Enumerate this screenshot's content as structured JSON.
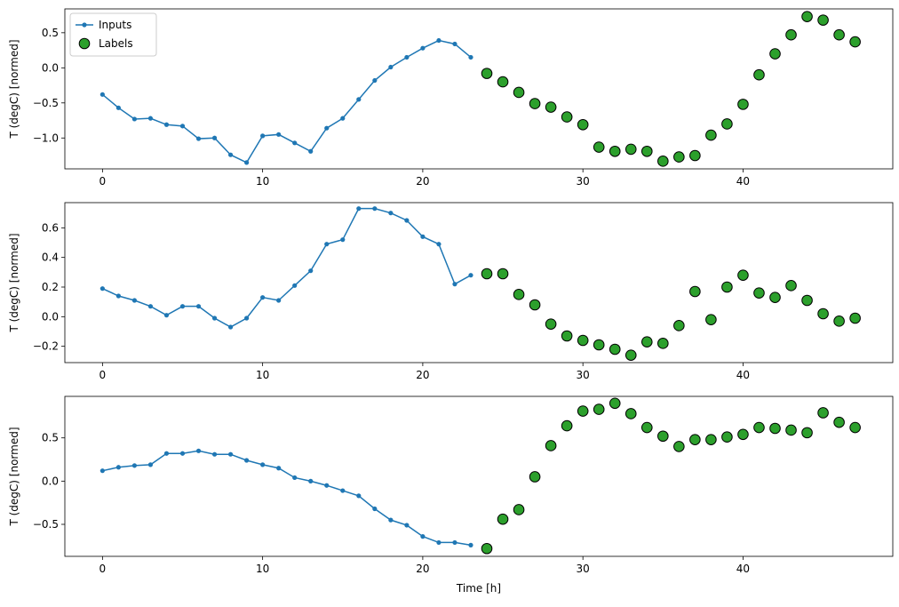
{
  "chart_data": [
    {
      "type": "line",
      "ylabel": "T (degC) [normed]",
      "xlabel": "",
      "xlim": [
        -2.35,
        49.35
      ],
      "ylim": [
        -1.44,
        0.84
      ],
      "xticks": [
        0,
        10,
        20,
        30,
        40
      ],
      "yticks": [
        -1.0,
        -0.5,
        0.0,
        0.5
      ],
      "ytick_labels": [
        "−1.0",
        "−0.5",
        "0.0",
        "0.5"
      ],
      "legend": {
        "placement": "upper-left",
        "entries": [
          "Inputs",
          "Labels"
        ]
      },
      "series": [
        {
          "name": "Inputs",
          "kind": "line-markers",
          "color": "#1f77b4",
          "x": [
            0,
            1,
            2,
            3,
            4,
            5,
            6,
            7,
            8,
            9,
            10,
            11,
            12,
            13,
            14,
            15,
            16,
            17,
            18,
            19,
            20,
            21,
            22,
            23
          ],
          "y": [
            -0.38,
            -0.57,
            -0.73,
            -0.72,
            -0.81,
            -0.83,
            -1.01,
            -1.0,
            -1.24,
            -1.35,
            -0.97,
            -0.95,
            -1.07,
            -1.19,
            -0.86,
            -0.72,
            -0.45,
            -0.18,
            0.01,
            0.15,
            0.28,
            0.39,
            0.34,
            0.15
          ]
        },
        {
          "name": "Labels",
          "kind": "scatter",
          "color": "#2ca02c",
          "edge": "#000000",
          "x": [
            24,
            25,
            26,
            27,
            28,
            29,
            30,
            31,
            32,
            33,
            34,
            35,
            36,
            37,
            38,
            39,
            40,
            41,
            42,
            43,
            44,
            45,
            46,
            47
          ],
          "y": [
            -0.08,
            -0.2,
            -0.35,
            -0.51,
            -0.56,
            -0.7,
            -0.81,
            -1.13,
            -1.19,
            -1.16,
            -1.19,
            -1.33,
            -1.27,
            -1.25,
            -0.96,
            -0.8,
            -0.52,
            -0.1,
            0.2,
            0.47,
            0.73,
            0.68,
            0.47,
            0.37
          ]
        }
      ]
    },
    {
      "type": "line",
      "ylabel": "T (degC) [normed]",
      "xlabel": "",
      "xlim": [
        -2.35,
        49.35
      ],
      "ylim": [
        -0.31,
        0.77
      ],
      "xticks": [
        0,
        10,
        20,
        30,
        40
      ],
      "yticks": [
        -0.2,
        0.0,
        0.2,
        0.4,
        0.6
      ],
      "ytick_labels": [
        "−0.2",
        "0.0",
        "0.2",
        "0.4",
        "0.6"
      ],
      "series": [
        {
          "name": "Inputs",
          "kind": "line-markers",
          "color": "#1f77b4",
          "x": [
            0,
            1,
            2,
            3,
            4,
            5,
            6,
            7,
            8,
            9,
            10,
            11,
            12,
            13,
            14,
            15,
            16,
            17,
            18,
            19,
            20,
            21,
            22,
            23
          ],
          "y": [
            0.19,
            0.14,
            0.11,
            0.07,
            0.01,
            0.07,
            0.07,
            -0.01,
            -0.07,
            -0.01,
            0.13,
            0.11,
            0.21,
            0.31,
            0.49,
            0.52,
            0.73,
            0.73,
            0.7,
            0.65,
            0.54,
            0.49,
            0.22,
            0.28
          ]
        },
        {
          "name": "Labels",
          "kind": "scatter",
          "color": "#2ca02c",
          "edge": "#000000",
          "x": [
            24,
            25,
            26,
            27,
            28,
            29,
            30,
            31,
            32,
            33,
            34,
            35,
            36,
            37,
            38,
            39,
            40,
            41,
            42,
            43,
            44,
            45,
            46,
            47
          ],
          "y": [
            0.29,
            0.29,
            0.15,
            0.08,
            -0.05,
            -0.13,
            -0.16,
            -0.19,
            -0.22,
            -0.26,
            -0.17,
            -0.18,
            -0.06,
            0.17,
            -0.02,
            0.2,
            0.28,
            0.16,
            0.13,
            0.21,
            0.11,
            0.02,
            -0.03,
            -0.01
          ]
        }
      ]
    },
    {
      "type": "line",
      "ylabel": "T (degC) [normed]",
      "xlabel": "Time [h]",
      "xlim": [
        -2.35,
        49.35
      ],
      "ylim": [
        -0.87,
        0.98
      ],
      "xticks": [
        0,
        10,
        20,
        30,
        40
      ],
      "yticks": [
        -0.5,
        0.0,
        0.5
      ],
      "ytick_labels": [
        "−0.5",
        "0.0",
        "0.5"
      ],
      "series": [
        {
          "name": "Inputs",
          "kind": "line-markers",
          "color": "#1f77b4",
          "x": [
            0,
            1,
            2,
            3,
            4,
            5,
            6,
            7,
            8,
            9,
            10,
            11,
            12,
            13,
            14,
            15,
            16,
            17,
            18,
            19,
            20,
            21,
            22,
            23
          ],
          "y": [
            0.12,
            0.16,
            0.18,
            0.19,
            0.32,
            0.32,
            0.35,
            0.31,
            0.31,
            0.24,
            0.19,
            0.15,
            0.04,
            0.0,
            -0.05,
            -0.11,
            -0.17,
            -0.32,
            -0.45,
            -0.51,
            -0.64,
            -0.71,
            -0.71,
            -0.74
          ]
        },
        {
          "name": "Labels",
          "kind": "scatter",
          "color": "#2ca02c",
          "edge": "#000000",
          "x": [
            24,
            25,
            26,
            27,
            28,
            29,
            30,
            31,
            32,
            33,
            34,
            35,
            36,
            37,
            38,
            39,
            40,
            41,
            42,
            43,
            44,
            45,
            46,
            47
          ],
          "y": [
            -0.78,
            -0.44,
            -0.33,
            0.05,
            0.41,
            0.64,
            0.81,
            0.83,
            0.9,
            0.78,
            0.62,
            0.52,
            0.4,
            0.48,
            0.48,
            0.51,
            0.54,
            0.62,
            0.61,
            0.59,
            0.56,
            0.79,
            0.68,
            0.62
          ]
        }
      ]
    }
  ]
}
